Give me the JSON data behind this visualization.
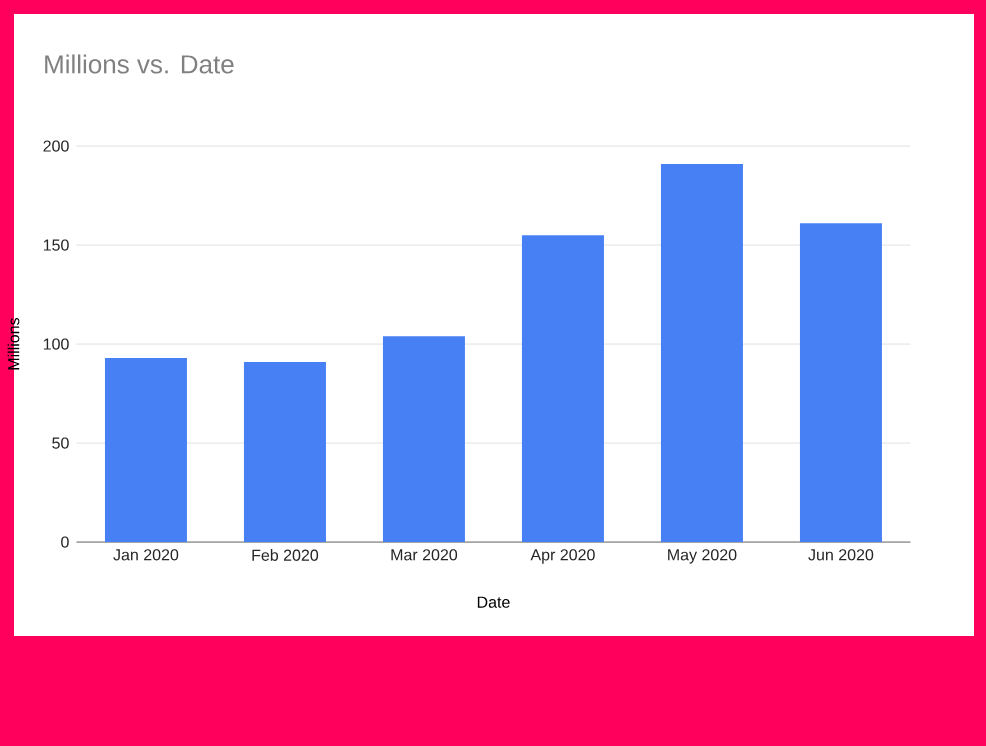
{
  "chart_data": {
    "type": "bar",
    "title": "Millions vs. Date",
    "xlabel": "Date",
    "ylabel": "Millions",
    "categories": [
      "Jan 2020",
      "Feb 2020",
      "Mar 2020",
      "Apr 2020",
      "May 2020",
      "Jun 2020"
    ],
    "values": [
      93,
      91,
      104,
      155,
      191,
      161
    ],
    "color": "#4680f4",
    "ylim": [
      0,
      200
    ],
    "yticks": [
      0,
      50,
      100,
      150,
      200
    ],
    "grid": "y"
  }
}
